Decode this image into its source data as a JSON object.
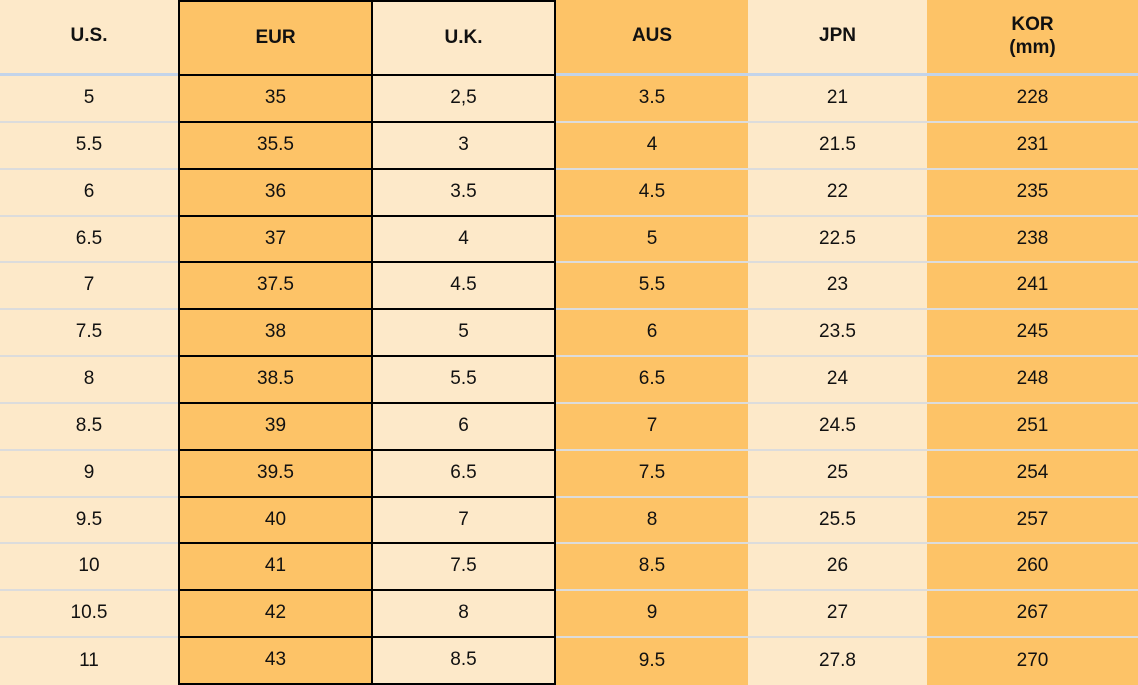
{
  "chart_data": {
    "type": "table",
    "columns": [
      {
        "label": "U.S."
      },
      {
        "label": "EUR"
      },
      {
        "label": "U.K."
      },
      {
        "label": "AUS"
      },
      {
        "label": "JPN"
      },
      {
        "label": "KOR",
        "label_line2": "(mm)"
      }
    ],
    "rows": [
      [
        "5",
        "35",
        "2,5",
        "3.5",
        "21",
        "228"
      ],
      [
        "5.5",
        "35.5",
        "3",
        "4",
        "21.5",
        "231"
      ],
      [
        "6",
        "36",
        "3.5",
        "4.5",
        "22",
        "235"
      ],
      [
        "6.5",
        "37",
        "4",
        "5",
        "22.5",
        "238"
      ],
      [
        "7",
        "37.5",
        "4.5",
        "5.5",
        "23",
        "241"
      ],
      [
        "7.5",
        "38",
        "5",
        "6",
        "23.5",
        "245"
      ],
      [
        "8",
        "38.5",
        "5.5",
        "6.5",
        "24",
        "248"
      ],
      [
        "8.5",
        "39",
        "6",
        "7",
        "24.5",
        "251"
      ],
      [
        "9",
        "39.5",
        "6.5",
        "7.5",
        "25",
        "254"
      ],
      [
        "9.5",
        "40",
        "7",
        "8",
        "25.5",
        "257"
      ],
      [
        "10",
        "41",
        "7.5",
        "8.5",
        "26",
        "260"
      ],
      [
        "10.5",
        "42",
        "8",
        "9",
        "27",
        "267"
      ],
      [
        "11",
        "43",
        "8.5",
        "9.5",
        "27.8",
        "270"
      ]
    ]
  },
  "colors": {
    "header_bg": "#4189c6",
    "orange_cell": "#fdc367",
    "cream_cell": "#fde9c9",
    "border_black": "#000000",
    "row_divider": "#dcdcdc",
    "header_divider": "#c3d4ea",
    "text": "#111111"
  }
}
